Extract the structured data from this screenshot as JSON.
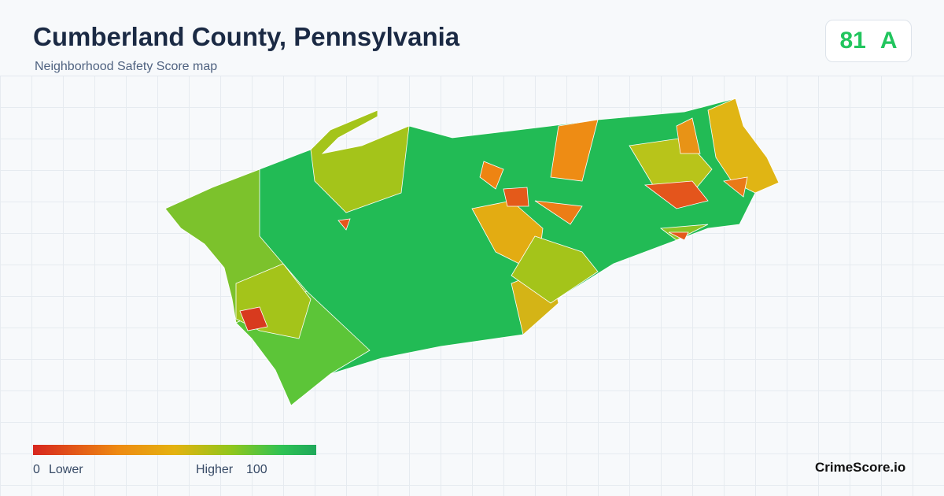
{
  "header": {
    "title": "Cumberland County, Pennsylvania",
    "subtitle": "Neighborhood Safety Score map"
  },
  "score": {
    "value": "81",
    "grade": "A"
  },
  "legend": {
    "min": 0,
    "min_label": "Lower",
    "max_label": "Higher",
    "max": 100
  },
  "brand": "CrimeScore.io"
}
